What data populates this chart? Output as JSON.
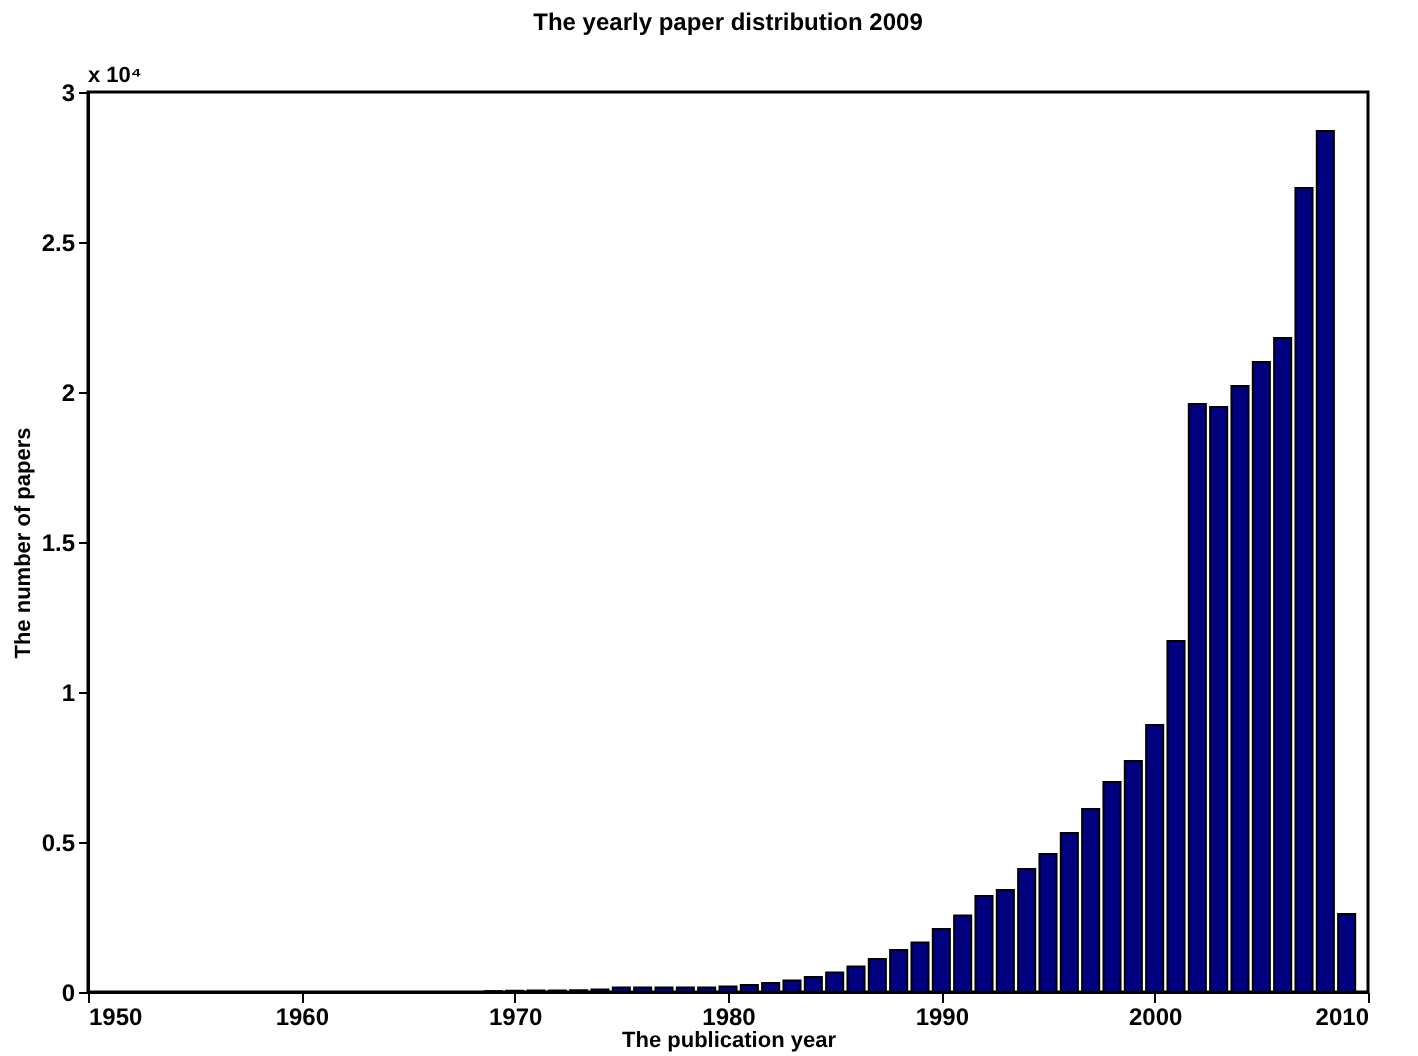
{
  "chart_data": {
    "type": "bar",
    "title": "The yearly paper distribution 2009",
    "xlabel": "The publication year",
    "ylabel": "The number of papers",
    "annotations": [
      "x 10⁴"
    ],
    "x": [
      1969,
      1970,
      1971,
      1972,
      1973,
      1974,
      1975,
      1976,
      1977,
      1978,
      1979,
      1980,
      1981,
      1982,
      1983,
      1984,
      1985,
      1986,
      1987,
      1988,
      1989,
      1990,
      1991,
      1992,
      1993,
      1994,
      1995,
      1996,
      1997,
      1998,
      1999,
      2000,
      2001,
      2002,
      2003,
      2004,
      2005,
      2006,
      2007,
      2008,
      2009
    ],
    "values": [
      0.003,
      0.004,
      0.005,
      0.005,
      0.006,
      0.008,
      0.015,
      0.015,
      0.015,
      0.015,
      0.015,
      0.018,
      0.023,
      0.03,
      0.038,
      0.05,
      0.065,
      0.085,
      0.11,
      0.14,
      0.165,
      0.21,
      0.255,
      0.32,
      0.34,
      0.41,
      0.46,
      0.53,
      0.61,
      0.7,
      0.77,
      0.89,
      1.17,
      1.96,
      1.95,
      2.02,
      2.1,
      2.18,
      2.68,
      2.87,
      0.26
    ],
    "color": "#000080",
    "xlim": [
      1950,
      2010
    ],
    "xticks": [
      1950,
      1960,
      1970,
      1980,
      1990,
      2000,
      2010
    ],
    "ylim": [
      0,
      3
    ],
    "yticks": [
      0,
      0.5,
      1,
      1.5,
      2,
      2.5,
      3
    ],
    "grid": false
  }
}
